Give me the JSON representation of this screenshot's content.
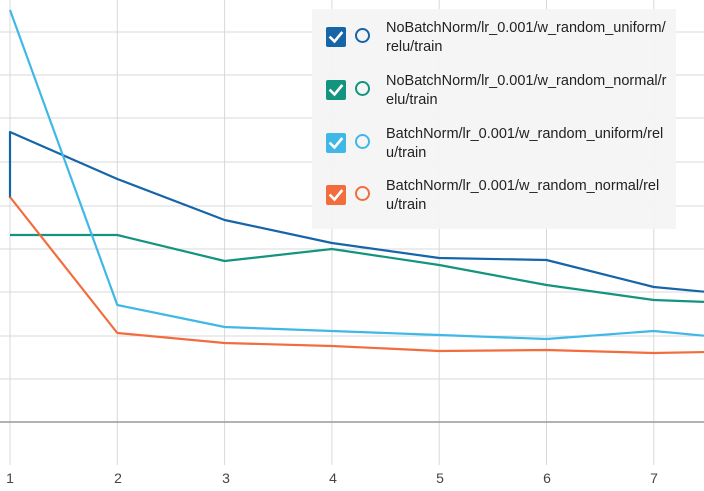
{
  "chart_data": {
    "type": "line",
    "x": [
      1,
      2,
      3,
      4,
      5,
      6,
      7,
      7.5
    ],
    "xlim": [
      1,
      7.5
    ],
    "x_ticks": [
      "1",
      "2",
      "3",
      "4",
      "5",
      "6",
      "7"
    ],
    "grid": true,
    "legend_position": "top-right",
    "series": [
      {
        "name": "NoBatchNorm/lr_0.001/w_random_uniform/relu/train",
        "color": "#1565a8",
        "values": [
          132,
          179,
          220,
          243,
          258,
          260,
          287,
          292
        ]
      },
      {
        "name": "NoBatchNorm/lr_0.001/w_random_normal/relu/train",
        "color": "#13947e",
        "values": [
          235,
          235,
          261,
          249,
          265,
          285,
          300,
          302
        ]
      },
      {
        "name": "BatchNorm/lr_0.001/w_random_uniform/relu/train",
        "color": "#3fb8e8",
        "values": [
          10,
          305,
          327,
          331,
          335,
          339,
          331,
          336
        ]
      },
      {
        "name": "BatchNorm/lr_0.001/w_random_normal/relu/train",
        "color": "#f26d3d",
        "values": [
          197,
          333,
          343,
          346,
          351,
          350,
          353,
          352
        ]
      }
    ]
  },
  "colors": {
    "grid": "#d8d8d8",
    "baseline": "#999999",
    "tick_text": "#444444"
  }
}
